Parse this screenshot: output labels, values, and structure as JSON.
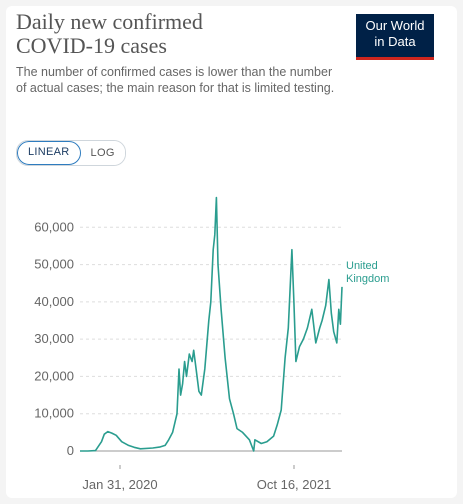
{
  "header": {
    "title_line1": "Daily new confirmed",
    "title_line2": "COVID-19 cases",
    "subtitle": "The number of confirmed cases is lower than the number of actual cases; the main reason for that is limited testing."
  },
  "logo": {
    "line1": "Our World",
    "line2": "in Data",
    "bg_color": "#002147",
    "accent_color": "#ce261e"
  },
  "scale_toggle": {
    "options": [
      "LINEAR",
      "LOG"
    ],
    "selected": "LINEAR"
  },
  "chart_data": {
    "type": "line",
    "x_axis": {
      "type": "date",
      "range": [
        "2020-01-31",
        "2021-11-20"
      ],
      "ticks": [
        "Jan 31, 2020",
        "Oct 16, 2021"
      ]
    },
    "y_axis": {
      "range": [
        0,
        70000
      ],
      "ticks": [
        0,
        10000,
        20000,
        30000,
        40000,
        50000,
        60000
      ],
      "tick_labels": [
        "0",
        "10,000",
        "20,000",
        "30,000",
        "40,000",
        "50,000",
        "60,000"
      ]
    },
    "grid": "horizontal dashed",
    "series": [
      {
        "name": "United Kingdom",
        "name_lines": [
          "United",
          "Kingdom"
        ],
        "color": "#2a9d8f",
        "points": [
          [
            "2020-01-31",
            0
          ],
          [
            "2020-02-20",
            0
          ],
          [
            "2020-03-10",
            100
          ],
          [
            "2020-03-25",
            2500
          ],
          [
            "2020-04-01",
            4500
          ],
          [
            "2020-04-10",
            5200
          ],
          [
            "2020-04-20",
            4800
          ],
          [
            "2020-05-01",
            4200
          ],
          [
            "2020-05-15",
            2500
          ],
          [
            "2020-06-01",
            1500
          ],
          [
            "2020-06-15",
            1000
          ],
          [
            "2020-07-01",
            600
          ],
          [
            "2020-08-01",
            800
          ],
          [
            "2020-08-20",
            1100
          ],
          [
            "2020-09-01",
            1500
          ],
          [
            "2020-09-10",
            3000
          ],
          [
            "2020-09-20",
            5000
          ],
          [
            "2020-10-01",
            10000
          ],
          [
            "2020-10-06",
            22000
          ],
          [
            "2020-10-10",
            15000
          ],
          [
            "2020-10-15",
            18000
          ],
          [
            "2020-10-20",
            24000
          ],
          [
            "2020-10-25",
            20000
          ],
          [
            "2020-11-01",
            26000
          ],
          [
            "2020-11-08",
            24000
          ],
          [
            "2020-11-12",
            27000
          ],
          [
            "2020-11-18",
            22000
          ],
          [
            "2020-11-25",
            16000
          ],
          [
            "2020-12-01",
            15000
          ],
          [
            "2020-12-10",
            22000
          ],
          [
            "2020-12-20",
            35000
          ],
          [
            "2020-12-25",
            40000
          ],
          [
            "2020-12-31",
            54000
          ],
          [
            "2021-01-04",
            58000
          ],
          [
            "2021-01-08",
            68000
          ],
          [
            "2021-01-12",
            50000
          ],
          [
            "2021-01-20",
            38000
          ],
          [
            "2021-01-30",
            25000
          ],
          [
            "2021-02-10",
            14000
          ],
          [
            "2021-02-20",
            10000
          ],
          [
            "2021-03-01",
            6000
          ],
          [
            "2021-03-15",
            5000
          ],
          [
            "2021-04-01",
            3000
          ],
          [
            "2021-04-12",
            0
          ],
          [
            "2021-04-15",
            3000
          ],
          [
            "2021-05-01",
            2000
          ],
          [
            "2021-05-15",
            2500
          ],
          [
            "2021-06-01",
            4000
          ],
          [
            "2021-06-10",
            7000
          ],
          [
            "2021-06-20",
            11000
          ],
          [
            "2021-06-30",
            25000
          ],
          [
            "2021-07-08",
            33000
          ],
          [
            "2021-07-17",
            54000
          ],
          [
            "2021-07-22",
            40000
          ],
          [
            "2021-07-27",
            24000
          ],
          [
            "2021-08-05",
            28000
          ],
          [
            "2021-08-15",
            30000
          ],
          [
            "2021-08-25",
            33000
          ],
          [
            "2021-09-05",
            38000
          ],
          [
            "2021-09-15",
            29000
          ],
          [
            "2021-09-25",
            33000
          ],
          [
            "2021-10-01",
            35000
          ],
          [
            "2021-10-10",
            39000
          ],
          [
            "2021-10-18",
            46000
          ],
          [
            "2021-10-24",
            37000
          ],
          [
            "2021-10-30",
            32000
          ],
          [
            "2021-11-07",
            29000
          ],
          [
            "2021-11-12",
            38000
          ],
          [
            "2021-11-16",
            34000
          ],
          [
            "2021-11-20",
            44000
          ]
        ]
      }
    ]
  }
}
